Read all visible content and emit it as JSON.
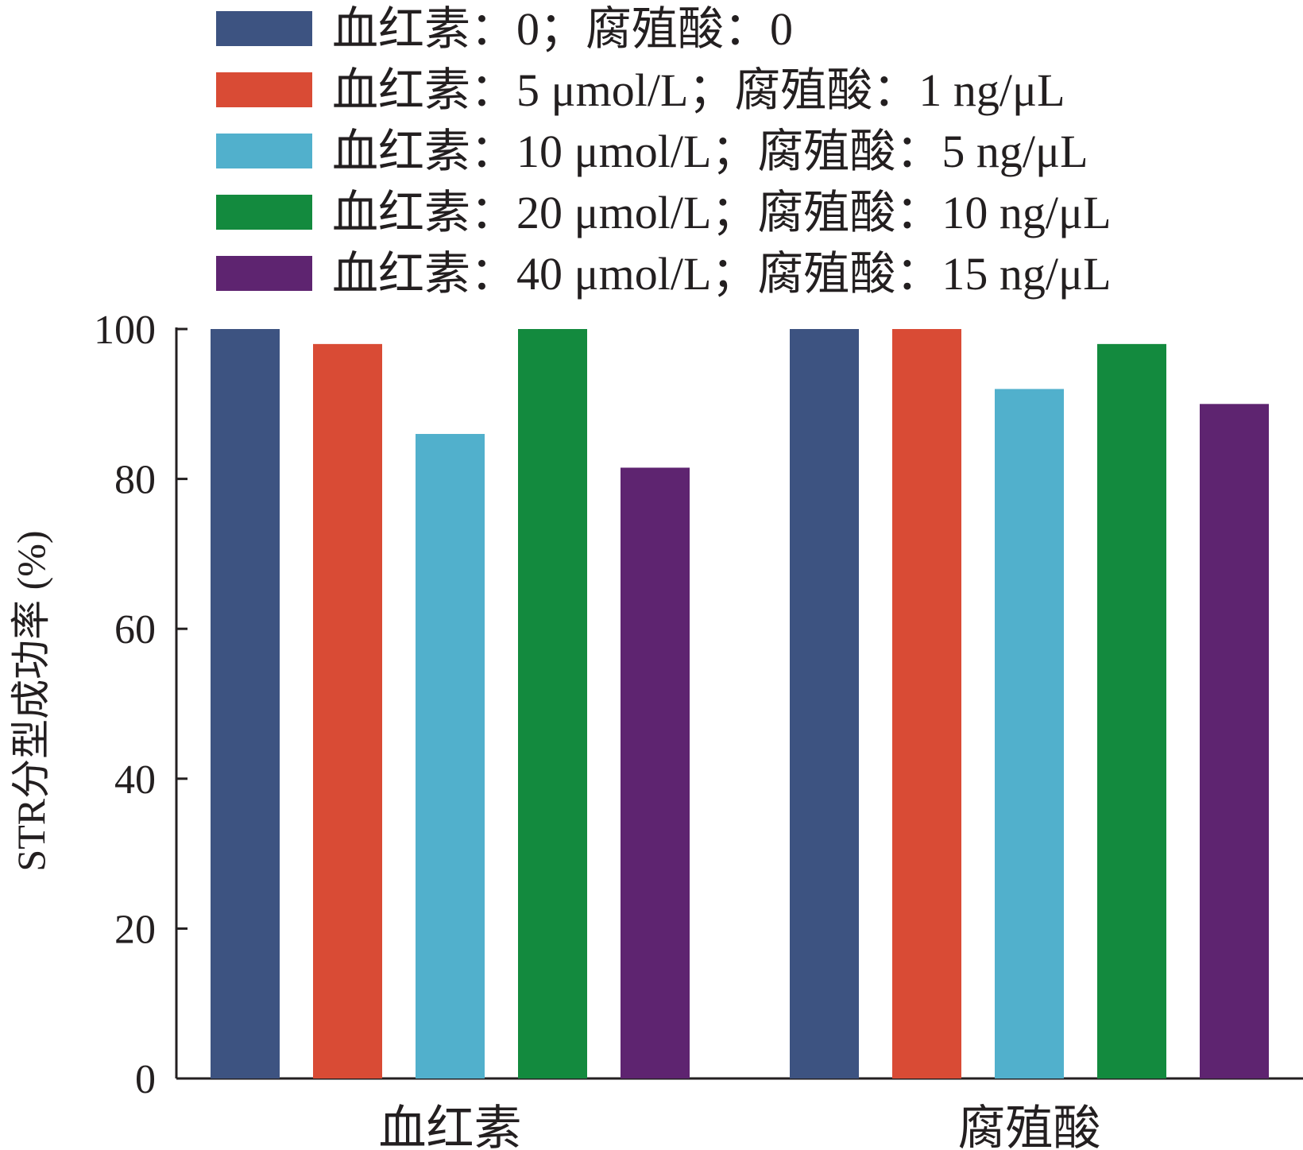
{
  "chart_data": {
    "type": "bar",
    "categories": [
      "血红素",
      "腐殖酸"
    ],
    "series": [
      {
        "name": "血红素：0；腐殖酸：0",
        "color": "#3d5381",
        "values": [
          100,
          100
        ]
      },
      {
        "name": "血红素：5 μmol/L；腐殖酸：1 ng/μL",
        "color": "#d94b35",
        "values": [
          98,
          100
        ]
      },
      {
        "name": "血红素：10 μmol/L；腐殖酸：5 ng/μL",
        "color": "#51b0cc",
        "values": [
          86,
          92
        ]
      },
      {
        "name": "血红素：20 μmol/L；腐殖酸：10 ng/μL",
        "color": "#138a3e",
        "values": [
          100,
          98
        ]
      },
      {
        "name": "血红素：40 μmol/L；腐殖酸：15 ng/μL",
        "color": "#5e2470",
        "values": [
          81.5,
          90
        ]
      }
    ],
    "title": "",
    "xlabel": "",
    "ylabel": "STR分型成功率 (%)",
    "ylim": [
      0,
      100
    ],
    "yticks": [
      0,
      20,
      40,
      60,
      80,
      100
    ],
    "grid": false,
    "legend_position": "top"
  }
}
